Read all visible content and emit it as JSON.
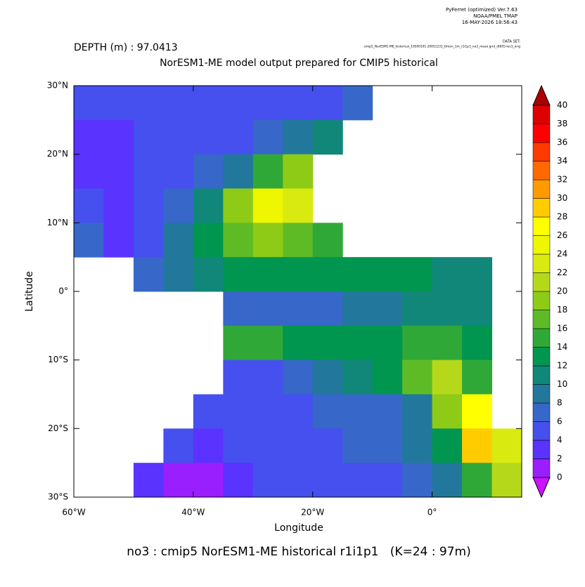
{
  "chart_data": {
    "type": "heatmap",
    "header": [
      "PyFerret (optimized) Ver.7.63",
      "NOAA/PMEL TMAP",
      "16-MAY-2026 18:56:43"
    ],
    "dataset_label": "DATA SET:",
    "dataset": "cmip5_NorESM1-ME_historical_19500101-20051231_Omon_1m_r1i1p1_no3_mean.grid_dt005-lev1_orig",
    "subtitle": "DEPTH (m) : 97.0413",
    "title": "NorESM1-ME model output prepared for CMIP5 historical",
    "x_label": "Longitude",
    "y_label": "Latitude",
    "footer": "no3 : cmip5 NorESM1-ME historical r1i1p1   (K=24 : 97m)",
    "xlim": [
      -60,
      15
    ],
    "ylim": [
      -30,
      30
    ],
    "xticks": [
      {
        "value": -60,
        "label": "60°W"
      },
      {
        "value": -40,
        "label": "40°W"
      },
      {
        "value": -20,
        "label": "20°W"
      },
      {
        "value": 0,
        "label": "0°"
      }
    ],
    "yticks": [
      {
        "value": -30,
        "label": "30°S"
      },
      {
        "value": -20,
        "label": "20°S"
      },
      {
        "value": -10,
        "label": "10°S"
      },
      {
        "value": 0,
        "label": "0°"
      },
      {
        "value": 10,
        "label": "10°N"
      },
      {
        "value": 20,
        "label": "20°N"
      },
      {
        "value": 30,
        "label": "30°N"
      }
    ],
    "x": [
      -57.5,
      -52.5,
      -47.5,
      -42.5,
      -37.5,
      -32.5,
      -27.5,
      -22.5,
      -17.5,
      -12.5,
      -7.5,
      -2.5,
      2.5,
      7.5,
      12.5
    ],
    "y": [
      27.5,
      22.5,
      17.5,
      12.5,
      7.5,
      2.5,
      -2.5,
      -7.5,
      -12.5,
      -17.5,
      -22.5,
      -27.5
    ],
    "z": [
      [
        4,
        4,
        4,
        4,
        4,
        4,
        4,
        5,
        5,
        6,
        null,
        null,
        null,
        null,
        null
      ],
      [
        2,
        3,
        4,
        4,
        4,
        5,
        6,
        8,
        10,
        null,
        null,
        null,
        null,
        null,
        null
      ],
      [
        2,
        2,
        4,
        5,
        6,
        8,
        14,
        18,
        null,
        null,
        null,
        null,
        null,
        null,
        null
      ],
      [
        4,
        3,
        4,
        6,
        10,
        18,
        24,
        22,
        null,
        null,
        null,
        null,
        null,
        null,
        null
      ],
      [
        6,
        3,
        5,
        8,
        12,
        16,
        18,
        16,
        14,
        null,
        null,
        null,
        null,
        null,
        null
      ],
      [
        null,
        null,
        6,
        8,
        10,
        12,
        12,
        12,
        12,
        13,
        13,
        12,
        10,
        10,
        null
      ],
      [
        null,
        null,
        null,
        null,
        null,
        6,
        6,
        6,
        7,
        8,
        9,
        10,
        10,
        10,
        null
      ],
      [
        null,
        null,
        null,
        null,
        null,
        14,
        14,
        13,
        12,
        12,
        12,
        14,
        14,
        12,
        null
      ],
      [
        null,
        null,
        null,
        null,
        null,
        4,
        5,
        6,
        8,
        10,
        12,
        16,
        20,
        14,
        null
      ],
      [
        null,
        null,
        null,
        null,
        4,
        4,
        4,
        5,
        6,
        6,
        6,
        8,
        18,
        26,
        null
      ],
      [
        null,
        null,
        null,
        4,
        3,
        4,
        4,
        4,
        5,
        6,
        7,
        8,
        12,
        28,
        22
      ],
      [
        null,
        null,
        3,
        1,
        1,
        3,
        4,
        4,
        4,
        4,
        5,
        6,
        8,
        14,
        20
      ]
    ],
    "levels": [
      0,
      2,
      4,
      6,
      8,
      10,
      12,
      14,
      16,
      18,
      20,
      22,
      24,
      26,
      28,
      30,
      32,
      34,
      36,
      38,
      40
    ],
    "colors": [
      "#9a1fff",
      "#5a33ff",
      "#4650ee",
      "#3767c8",
      "#22789c",
      "#11877a",
      "#009650",
      "#30a838",
      "#5ebb26",
      "#8ecb16",
      "#b5d91a",
      "#d8ea10",
      "#eef600",
      "#ffff00",
      "#ffcc00",
      "#ff9a00",
      "#ff6a00",
      "#ff3a00",
      "#ff0000",
      "#dd0000"
    ],
    "under_color": "#cc11ff",
    "over_color": "#aa0000"
  }
}
